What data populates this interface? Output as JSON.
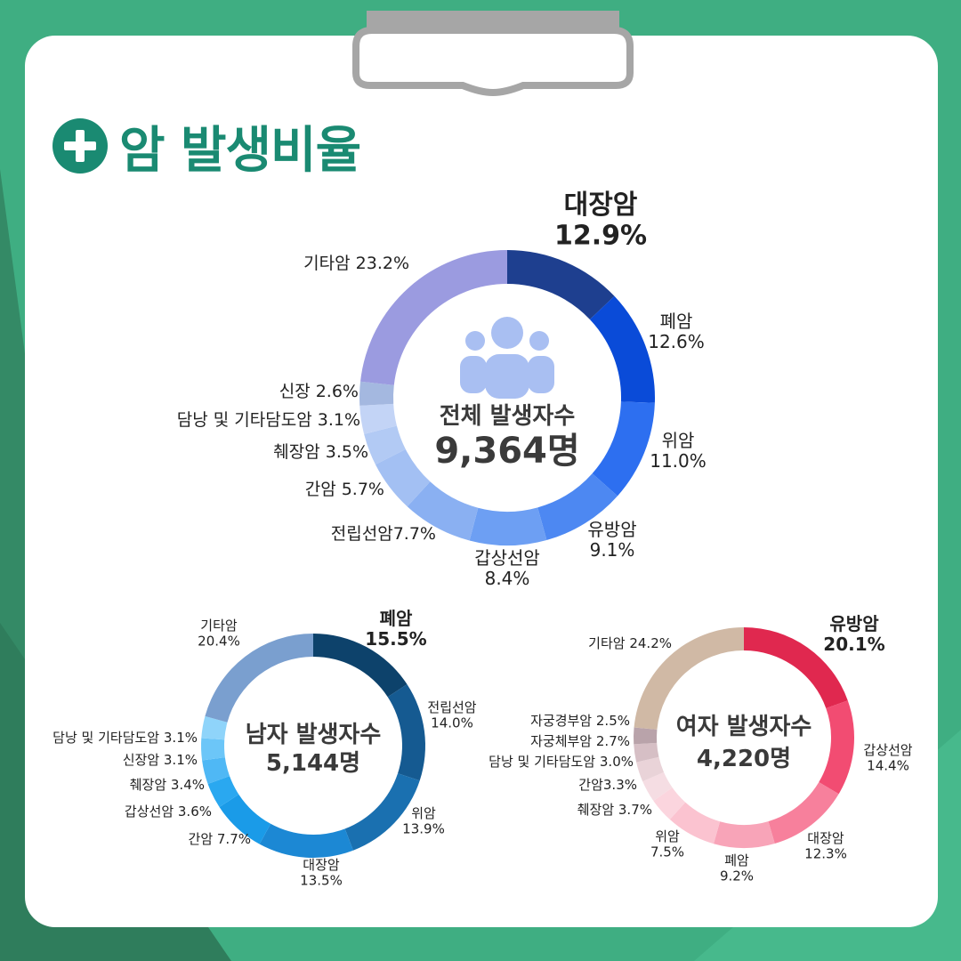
{
  "title": "암 발생비율",
  "chart_data": [
    {
      "type": "pie",
      "donut": true,
      "center_label": "전체 발생자수",
      "center_value": "9,364명",
      "slices": [
        {
          "label": "대장암",
          "value": 12.9,
          "text": "12.9%",
          "color": "#1e3f8f"
        },
        {
          "label": "폐암",
          "value": 12.6,
          "text": "12.6%",
          "color": "#0a4bd8"
        },
        {
          "label": "위암",
          "value": 11.0,
          "text": "11.0%",
          "color": "#2d6ff0"
        },
        {
          "label": "유방암",
          "value": 9.1,
          "text": "9.1%",
          "color": "#4d88f2"
        },
        {
          "label": "갑상선암",
          "value": 8.4,
          "text": "8.4%",
          "color": "#6d9ff3"
        },
        {
          "label": "전립선암",
          "value": 7.7,
          "text": "전립선암7.7%",
          "color": "#8ab0f2"
        },
        {
          "label": "간암",
          "value": 5.7,
          "text": "간암 5.7%",
          "color": "#a3c0f3"
        },
        {
          "label": "췌장암",
          "value": 3.5,
          "text": "췌장암 3.5%",
          "color": "#b2caf4"
        },
        {
          "label": "담낭 및 기타담도암",
          "value": 3.1,
          "text": "담낭 및 기타담도암 3.1%",
          "color": "#c3d4f6"
        },
        {
          "label": "신장",
          "value": 2.6,
          "text": "신장 2.6%",
          "color": "#a4b8e0"
        },
        {
          "label": "기타암",
          "value": 23.2,
          "text": "기타암 23.2%",
          "color": "#9b9be0"
        }
      ]
    },
    {
      "type": "pie",
      "donut": true,
      "center_label": "남자 발생자수",
      "center_value": "5,144명",
      "slices": [
        {
          "label": "폐암",
          "value": 15.5,
          "text": "15.5%",
          "color": "#0d426b"
        },
        {
          "label": "전립선암",
          "value": 14.0,
          "text": "14.0%",
          "color": "#155a91"
        },
        {
          "label": "위암",
          "value": 13.9,
          "text": "13.9%",
          "color": "#1a70b0"
        },
        {
          "label": "대장암",
          "value": 13.5,
          "text": "13.5%",
          "color": "#1c88d4"
        },
        {
          "label": "간암",
          "value": 7.7,
          "text": "간암 7.7%",
          "color": "#1a9be8"
        },
        {
          "label": "갑상선암",
          "value": 3.6,
          "text": "갑상선암 3.6%",
          "color": "#2aa8f0"
        },
        {
          "label": "췌장암",
          "value": 3.4,
          "text": "췌장암 3.4%",
          "color": "#4fb8f5"
        },
        {
          "label": "신장암",
          "value": 3.1,
          "text": "신장암 3.1%",
          "color": "#6cc6f8"
        },
        {
          "label": "담낭 및 기타담도암",
          "value": 3.1,
          "text": "담낭 및 기타담도암 3.1%",
          "color": "#8fd4fa"
        },
        {
          "label": "기타암",
          "value": 20.4,
          "text": "20.4%",
          "color": "#7a9fcf"
        }
      ]
    },
    {
      "type": "pie",
      "donut": true,
      "center_label": "여자 발생자수",
      "center_value": "4,220명",
      "slices": [
        {
          "label": "유방암",
          "value": 20.1,
          "text": "20.1%",
          "color": "#e0284f"
        },
        {
          "label": "갑상선암",
          "value": 14.4,
          "text": "14.4%",
          "color": "#f24c72"
        },
        {
          "label": "대장암",
          "value": 12.3,
          "text": "12.3%",
          "color": "#f7809c"
        },
        {
          "label": "폐암",
          "value": 9.2,
          "text": "9.2%",
          "color": "#f8a4b8"
        },
        {
          "label": "위암",
          "value": 7.5,
          "text": "7.5%",
          "color": "#fbc3d0"
        },
        {
          "label": "췌장암",
          "value": 3.7,
          "text": "췌장암 3.7%",
          "color": "#fbd5de"
        },
        {
          "label": "간암",
          "value": 3.3,
          "text": "간암3.3%",
          "color": "#f5dde3"
        },
        {
          "label": "담낭 및 기타담도암",
          "value": 3.0,
          "text": "담낭 및 기타담도암 3.0%",
          "color": "#e9d3d8"
        },
        {
          "label": "자궁체부암",
          "value": 2.7,
          "text": "자궁체부암 2.7%",
          "color": "#d6bfc5"
        },
        {
          "label": "자궁경부암",
          "value": 2.5,
          "text": "자궁경부암 2.5%",
          "color": "#b9a3aa"
        },
        {
          "label": "기타암",
          "value": 24.2,
          "text": "기타암 24.2%",
          "color": "#d0b9a5"
        }
      ]
    }
  ]
}
